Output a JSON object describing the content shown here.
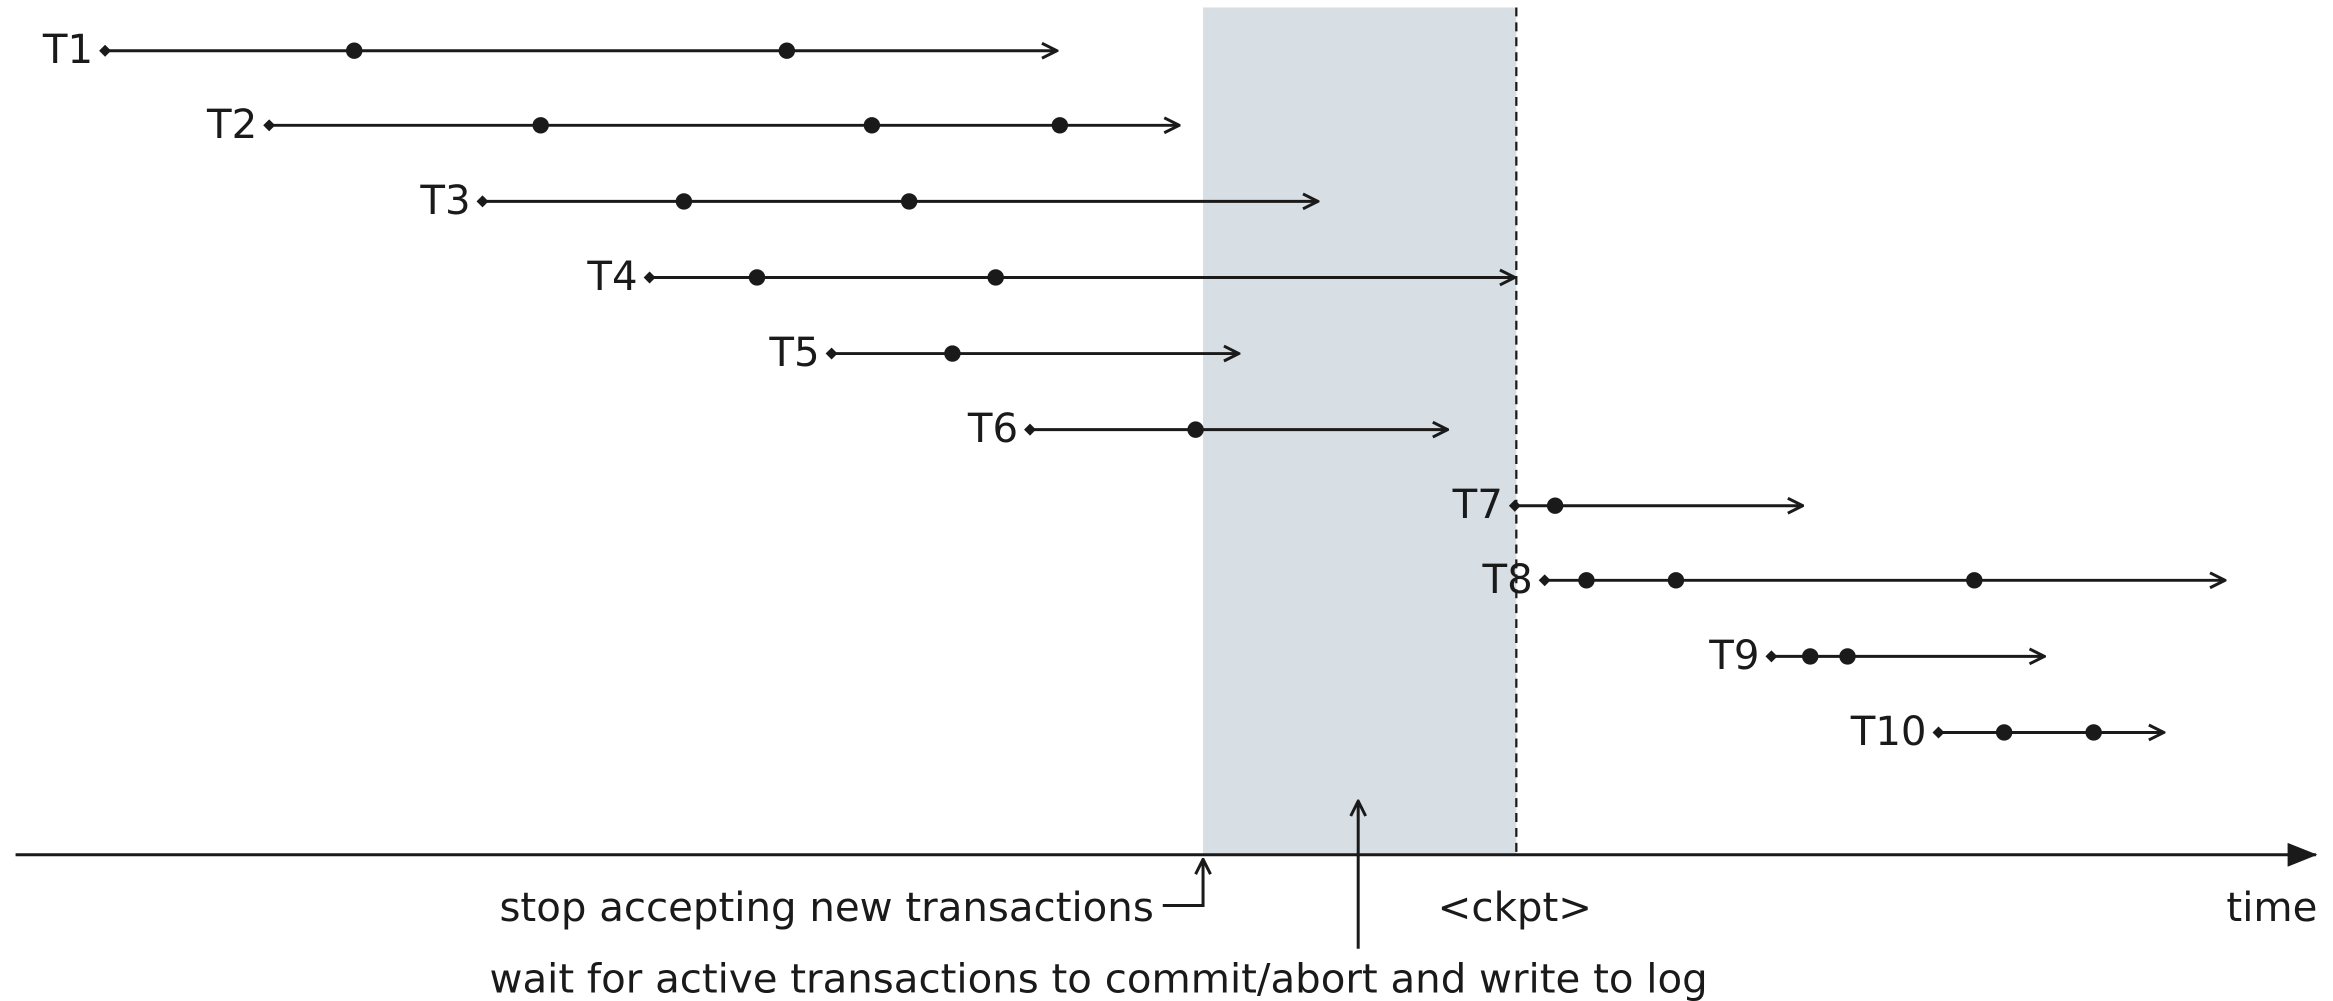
{
  "transactions": [
    {
      "label": "T1"
    },
    {
      "label": "T2"
    },
    {
      "label": "T3"
    },
    {
      "label": "T4"
    },
    {
      "label": "T5"
    },
    {
      "label": "T6"
    },
    {
      "label": "T7"
    },
    {
      "label": "T8"
    },
    {
      "label": "T9"
    },
    {
      "label": "T10"
    }
  ],
  "annotations": {
    "stop": "stop accepting new transactions",
    "ckpt": "<ckpt>",
    "time": "time",
    "wait": "wait for active transactions to commit/abort and write to log"
  }
}
